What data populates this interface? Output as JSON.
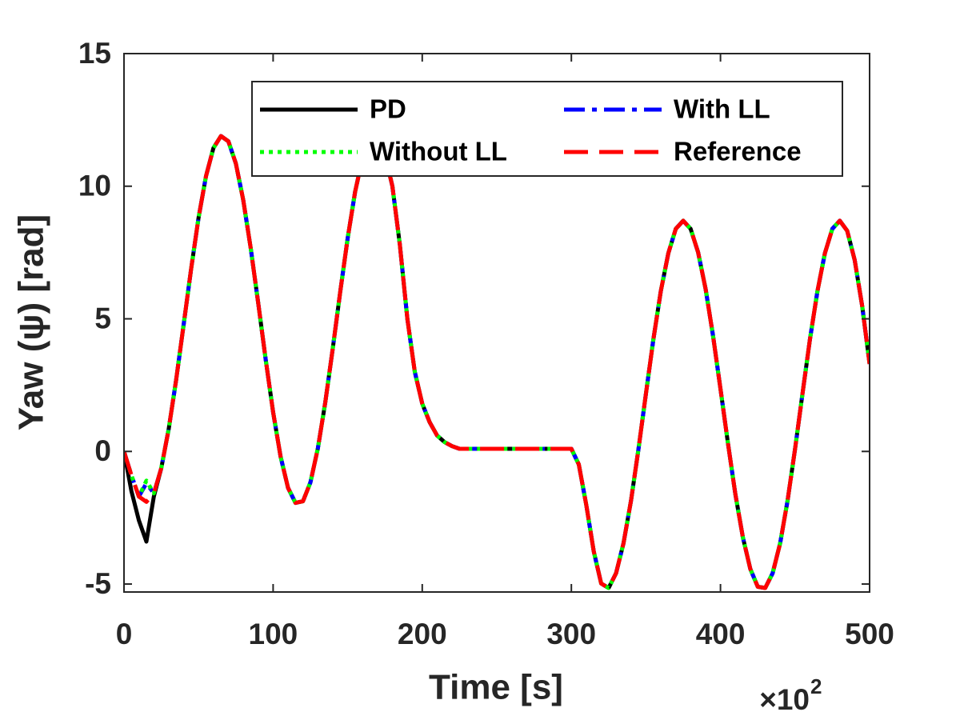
{
  "chart_data": {
    "type": "line",
    "x_label": "Time [s]",
    "y_label": "Yaw (ψ) [rad]",
    "x_scale_base": "×10",
    "x_scale_power": "2",
    "xlim": [
      0,
      500
    ],
    "xticks": [
      0,
      100,
      200,
      300,
      400,
      500
    ],
    "ylim": [
      -5.3,
      15
    ],
    "yticks": [
      -5,
      0,
      5,
      10,
      15
    ],
    "grid": false,
    "box": true,
    "legend": "top-right",
    "legend_columns": 2,
    "x": [
      0,
      5,
      10,
      15,
      20,
      25,
      30,
      35,
      40,
      45,
      50,
      55,
      60,
      65,
      70,
      75,
      80,
      85,
      90,
      95,
      100,
      105,
      110,
      115,
      120,
      125,
      130,
      135,
      140,
      145,
      150,
      155,
      160,
      165,
      170,
      175,
      180,
      185,
      190,
      195,
      200,
      205,
      210,
      215,
      220,
      225,
      230,
      235,
      240,
      245,
      250,
      255,
      260,
      265,
      270,
      275,
      280,
      285,
      290,
      295,
      300,
      305,
      310,
      315,
      320,
      325,
      330,
      335,
      340,
      345,
      350,
      355,
      360,
      365,
      370,
      375,
      380,
      385,
      390,
      395,
      400,
      405,
      410,
      415,
      420,
      425,
      430,
      435,
      440,
      445,
      450,
      455,
      460,
      465,
      470,
      475,
      480,
      485,
      490,
      495,
      500
    ],
    "series": [
      {
        "name": "PD",
        "color": "#000000",
        "linestyle": "solid",
        "values": [
          0,
          -1.5,
          -2.6,
          -3.4,
          -1.7,
          -0.63,
          0.85,
          2.7,
          4.79,
          6.88,
          8.81,
          10.38,
          11.44,
          11.89,
          11.69,
          10.86,
          9.47,
          7.66,
          5.59,
          3.47,
          1.48,
          -0.19,
          -1.37,
          -1.94,
          -1.88,
          -1.17,
          0.11,
          1.85,
          3.89,
          6.02,
          8.04,
          9.79,
          11.07,
          11.77,
          11.85,
          11.2,
          10,
          7.8,
          5,
          3,
          1.8,
          1.1,
          0.6,
          0.35,
          0.2,
          0.1,
          0.1,
          0.1,
          0.1,
          0.1,
          0.1,
          0.1,
          0.1,
          0.1,
          0.1,
          0.1,
          0.1,
          0.1,
          0.1,
          0.1,
          0.1,
          -0.49,
          -2.01,
          -3.77,
          -4.98,
          -5.15,
          -4.59,
          -3.46,
          -1.85,
          0.09,
          2.17,
          4.22,
          6.04,
          7.47,
          8.39,
          8.7,
          8.39,
          7.51,
          6.13,
          4.36,
          2.36,
          0.32,
          -1.61,
          -3.24,
          -4.43,
          -5.1,
          -5.15,
          -4.59,
          -3.46,
          -1.85,
          0.09,
          2.17,
          4.22,
          6.04,
          7.47,
          8.39,
          8.7,
          8.32,
          7.21,
          5.49,
          3.3
        ]
      },
      {
        "name": "With LL",
        "color": "#0000ff",
        "linestyle": "dashdot",
        "values": [
          0,
          -0.9,
          -1.7,
          -1.2,
          -1.58,
          -0.63,
          0.85,
          2.7,
          4.79,
          6.88,
          8.81,
          10.38,
          11.44,
          11.89,
          11.69,
          10.86,
          9.47,
          7.66,
          5.59,
          3.47,
          1.48,
          -0.19,
          -1.37,
          -1.94,
          -1.88,
          -1.17,
          0.11,
          1.85,
          3.89,
          6.02,
          8.04,
          9.79,
          11.07,
          11.77,
          11.85,
          11.2,
          10,
          7.8,
          5,
          3,
          1.8,
          1.1,
          0.6,
          0.35,
          0.2,
          0.1,
          0.1,
          0.1,
          0.1,
          0.1,
          0.1,
          0.1,
          0.1,
          0.1,
          0.1,
          0.1,
          0.1,
          0.1,
          0.1,
          0.1,
          0.1,
          -0.49,
          -2.01,
          -3.77,
          -4.98,
          -5.15,
          -4.59,
          -3.46,
          -1.85,
          0.09,
          2.17,
          4.22,
          6.04,
          7.47,
          8.39,
          8.7,
          8.39,
          7.51,
          6.13,
          4.36,
          2.36,
          0.32,
          -1.61,
          -3.24,
          -4.43,
          -5.1,
          -5.15,
          -4.59,
          -3.46,
          -1.85,
          0.09,
          2.17,
          4.22,
          6.04,
          7.47,
          8.39,
          8.7,
          8.32,
          7.21,
          5.49,
          3.3
        ]
      },
      {
        "name": "Without LL",
        "color": "#00ff00",
        "linestyle": "dotted",
        "values": [
          0,
          -0.9,
          -1.7,
          -1.1,
          -1.58,
          -0.63,
          0.85,
          2.7,
          4.79,
          6.88,
          8.81,
          10.38,
          11.44,
          11.89,
          11.69,
          10.86,
          9.47,
          7.66,
          5.59,
          3.47,
          1.48,
          -0.19,
          -1.37,
          -1.94,
          -1.88,
          -1.17,
          0.11,
          1.85,
          3.89,
          6.02,
          8.04,
          9.79,
          11.07,
          11.77,
          11.85,
          11.2,
          10,
          7.8,
          5,
          3,
          1.8,
          1.1,
          0.6,
          0.35,
          0.2,
          0.1,
          0.1,
          0.1,
          0.1,
          0.1,
          0.1,
          0.1,
          0.1,
          0.1,
          0.1,
          0.1,
          0.1,
          0.1,
          0.1,
          0.1,
          0.1,
          -0.49,
          -2.01,
          -3.77,
          -4.98,
          -5.15,
          -4.59,
          -3.46,
          -1.85,
          0.09,
          2.17,
          4.22,
          6.04,
          7.47,
          8.39,
          8.7,
          8.39,
          7.51,
          6.13,
          4.36,
          2.36,
          0.32,
          -1.61,
          -3.24,
          -4.43,
          -5.1,
          -5.15,
          -4.59,
          -3.46,
          -1.85,
          0.09,
          2.17,
          4.22,
          6.04,
          7.47,
          8.39,
          8.7,
          8.32,
          7.21,
          5.49,
          3.3
        ]
      },
      {
        "name": "Reference",
        "color": "#ff0000",
        "linestyle": "dashed",
        "values": [
          0,
          -0.9,
          -1.7,
          -1.9,
          -1.58,
          -0.63,
          0.85,
          2.7,
          4.79,
          6.88,
          8.81,
          10.38,
          11.44,
          11.89,
          11.69,
          10.86,
          9.47,
          7.66,
          5.59,
          3.47,
          1.48,
          -0.19,
          -1.37,
          -1.94,
          -1.88,
          -1.17,
          0.11,
          1.85,
          3.89,
          6.02,
          8.04,
          9.79,
          11.07,
          11.77,
          11.85,
          11.2,
          10,
          7.8,
          5,
          3,
          1.8,
          1.1,
          0.6,
          0.35,
          0.2,
          0.1,
          0.1,
          0.1,
          0.1,
          0.1,
          0.1,
          0.1,
          0.1,
          0.1,
          0.1,
          0.1,
          0.1,
          0.1,
          0.1,
          0.1,
          0.1,
          -0.49,
          -2.01,
          -3.77,
          -4.98,
          -5.15,
          -4.59,
          -3.46,
          -1.85,
          0.09,
          2.17,
          4.22,
          6.04,
          7.47,
          8.39,
          8.7,
          8.39,
          7.51,
          6.13,
          4.36,
          2.36,
          0.32,
          -1.61,
          -3.24,
          -4.43,
          -5.1,
          -5.15,
          -4.59,
          -3.46,
          -1.85,
          0.09,
          2.17,
          4.22,
          6.04,
          7.47,
          8.39,
          8.7,
          8.32,
          7.21,
          5.49,
          3.3
        ]
      }
    ]
  }
}
